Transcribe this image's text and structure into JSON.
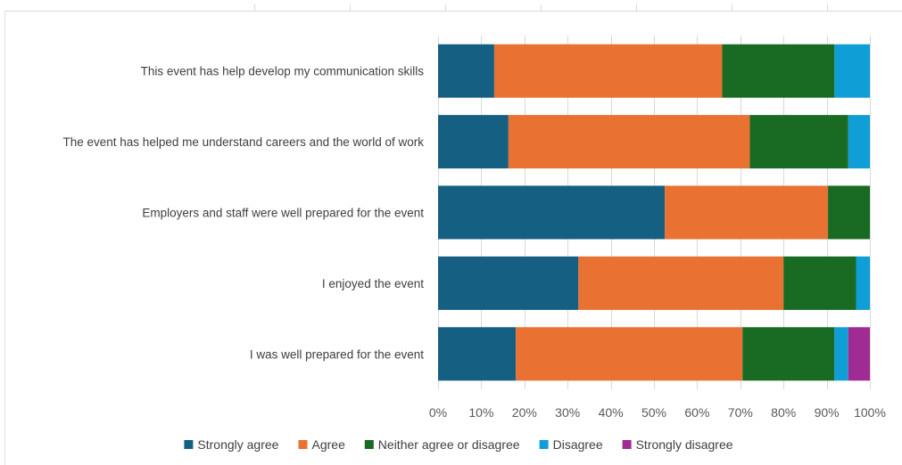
{
  "chart_data": {
    "type": "bar",
    "orientation": "horizontal",
    "stacked": "percent",
    "title": "",
    "xlabel": "",
    "ylabel": "",
    "xlim": [
      0,
      100
    ],
    "x_ticks": [
      "0%",
      "10%",
      "20%",
      "30%",
      "40%",
      "50%",
      "60%",
      "70%",
      "80%",
      "90%",
      "100%"
    ],
    "categories": [
      "This event has help develop my communication skills",
      "The event has helped me understand careers and the world of work",
      "Employers and staff were well prepared for the event",
      "I enjoyed the event",
      "I was well prepared for the event"
    ],
    "series": [
      {
        "name": "Strongly agree",
        "color": "#156082",
        "values": [
          13,
          16.3,
          52.5,
          32.5,
          18
        ]
      },
      {
        "name": "Agree",
        "color": "#E97132",
        "values": [
          52.8,
          55.9,
          37.8,
          47.5,
          52.5
        ]
      },
      {
        "name": "Neither agree or disagree",
        "color": "#196B24",
        "values": [
          26,
          22.8,
          9.7,
          16.8,
          21.3
        ]
      },
      {
        "name": "Disagree",
        "color": "#0F9ED5",
        "values": [
          8.2,
          5,
          0,
          3.2,
          3.2
        ]
      },
      {
        "name": "Strongly disagree",
        "color": "#A02B93",
        "values": [
          0,
          0,
          0,
          0,
          5
        ]
      }
    ],
    "grid": true,
    "legend_position": "bottom"
  }
}
